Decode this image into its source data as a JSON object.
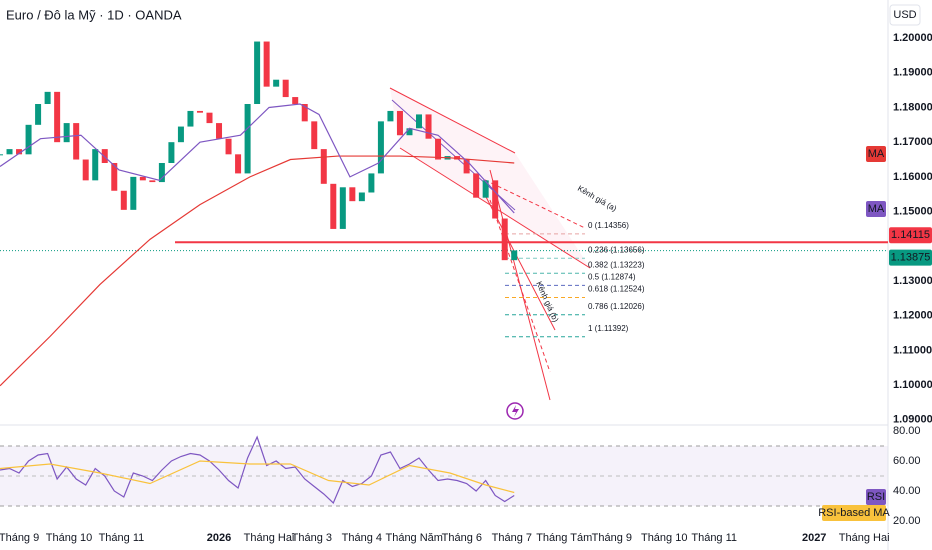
{
  "header": {
    "title": "Euro / Đô la Mỹ · 1D · OANDA",
    "currency": "USD"
  },
  "chart_data": [
    {
      "type": "candlestick",
      "up_color": "#089981",
      "down_color": "#f23645",
      "x": [
        -8,
        -4,
        0,
        4,
        8,
        12,
        16,
        20,
        24,
        28,
        32,
        36,
        40,
        44,
        48,
        52,
        56,
        60,
        64,
        68,
        72,
        76,
        80,
        84,
        88,
        92,
        96,
        100,
        104,
        108,
        112,
        116,
        120,
        124,
        128,
        132,
        136,
        140,
        144,
        148,
        152,
        156,
        160,
        164,
        168,
        172,
        176,
        180,
        184,
        188,
        192,
        196,
        200,
        204,
        208
      ],
      "close": [
        1.1665,
        1.168,
        1.1665,
        1.175,
        1.181,
        1.1845,
        1.17,
        1.1755,
        1.165,
        1.159,
        1.168,
        1.164,
        1.156,
        1.1505,
        1.16,
        1.159,
        1.1585,
        1.164,
        1.17,
        1.1745,
        1.179,
        1.1785,
        1.1755,
        1.171,
        1.1665,
        1.161,
        1.181,
        1.199,
        1.186,
        1.188,
        1.183,
        1.181,
        1.176,
        1.168,
        1.158,
        1.145,
        1.157,
        1.153,
        1.1555,
        1.161,
        1.176,
        1.179,
        1.172,
        1.174,
        1.178,
        1.171,
        1.165,
        1.166,
        1.165,
        1.161,
        1.154,
        1.159,
        1.148,
        1.136,
        1.1388
      ],
      "series": [
        {
          "name": "MA",
          "color": "#e53935",
          "x": [
            -8,
            13,
            34,
            55,
            76,
            97,
            114,
            134,
            160,
            181,
            208
          ],
          "values": [
            1.0998,
            1.114,
            1.129,
            1.142,
            1.152,
            1.16,
            1.165,
            1.166,
            1.166,
            1.1655,
            1.164
          ]
        },
        {
          "name": "MA",
          "color": "#7e57c2",
          "x": [
            -8,
            9,
            26,
            42,
            59,
            76,
            93,
            105,
            118,
            126,
            139,
            151,
            164,
            176,
            189,
            208
          ],
          "values": [
            1.163,
            1.171,
            1.172,
            1.162,
            1.159,
            1.17,
            1.172,
            1.18,
            1.181,
            1.178,
            1.16,
            1.164,
            1.174,
            1.172,
            1.164,
            1.1496
          ]
        }
      ],
      "hlines": [
        {
          "value": 1.14115,
          "label": "1.14115",
          "color": "#f23645"
        },
        {
          "value": 1.13875,
          "label": "1.13875",
          "color": "#089981"
        }
      ],
      "fib": [
        {
          "value": 1.14356,
          "label": "0 (1.14356)",
          "color": "#e6a3a3"
        },
        {
          "value": 1.13656,
          "label": "0.236 (1.13656)",
          "color": "#80cbc4"
        },
        {
          "value": 1.13223,
          "label": "0.382 (1.13223)",
          "color": "#4db6ac"
        },
        {
          "value": 1.12874,
          "label": "0.5 (1.12874)",
          "color": "#5c6bc0"
        },
        {
          "value": 1.12524,
          "label": "0.618 (1.12524)",
          "color": "#f9a825"
        },
        {
          "value": 1.12026,
          "label": "0.786 (1.12026)",
          "color": "#26a69a"
        },
        {
          "value": 1.11392,
          "label": "1 (1.11392)",
          "color": "#26a69a"
        }
      ],
      "annotations": [
        "Kênh giá (a)",
        "Kênh giá (b)"
      ],
      "xlim": [
        -8,
        365
      ],
      "xticks": [
        {
          "value": 0,
          "label": "Tháng 9"
        },
        {
          "value": 21,
          "label": "Tháng 10"
        },
        {
          "value": 43,
          "label": "Tháng 11"
        },
        {
          "value": 84,
          "label": "2026"
        },
        {
          "value": 105,
          "label": "Tháng Hai"
        },
        {
          "value": 123,
          "label": "Tháng 3"
        },
        {
          "value": 144,
          "label": "Tháng 4"
        },
        {
          "value": 166,
          "label": "Tháng Năm"
        },
        {
          "value": 186,
          "label": "Tháng 6"
        },
        {
          "value": 207,
          "label": "Tháng 7"
        },
        {
          "value": 229,
          "label": "Tháng Tám"
        },
        {
          "value": 249,
          "label": "Tháng 9"
        },
        {
          "value": 271,
          "label": "Tháng 10"
        },
        {
          "value": 292,
          "label": "Tháng 11"
        },
        {
          "value": 334,
          "label": "2027"
        },
        {
          "value": 355,
          "label": "Tháng Hai"
        }
      ],
      "ylim": [
        1.0885,
        1.21097
      ],
      "yticks": [
        {
          "value": 1.2,
          "label": "1.20000"
        },
        {
          "value": 1.19,
          "label": "1.19000"
        },
        {
          "value": 1.18,
          "label": "1.18000"
        },
        {
          "value": 1.17,
          "label": "1.17000"
        },
        {
          "value": 1.16,
          "label": "1.16000"
        },
        {
          "value": 1.15,
          "label": "1.15000"
        },
        {
          "value": 1.13,
          "label": "1.13000"
        },
        {
          "value": 1.12,
          "label": "1.12000"
        },
        {
          "value": 1.11,
          "label": "1.11000"
        },
        {
          "value": 1.1,
          "label": "1.10000"
        },
        {
          "value": 1.09,
          "label": "1.09000"
        }
      ]
    },
    {
      "type": "line",
      "series": [
        {
          "name": "RSI",
          "color": "#7e57c2",
          "x": [
            -8,
            -4,
            0,
            4,
            8,
            12,
            16,
            20,
            24,
            28,
            32,
            36,
            40,
            44,
            48,
            52,
            56,
            60,
            64,
            68,
            72,
            76,
            80,
            84,
            88,
            92,
            96,
            100,
            104,
            108,
            112,
            116,
            120,
            124,
            128,
            132,
            136,
            140,
            144,
            148,
            152,
            156,
            160,
            164,
            168,
            172,
            176,
            180,
            184,
            188,
            192,
            196,
            200,
            204,
            208
          ],
          "values": [
            54,
            55,
            52,
            60,
            64,
            65,
            48,
            56,
            48,
            44,
            55,
            50,
            40,
            36,
            52,
            50,
            47,
            54,
            60,
            63,
            65,
            64,
            60,
            54,
            47,
            42,
            62,
            76,
            57,
            60,
            55,
            56,
            48,
            43,
            38,
            32,
            47,
            43,
            45,
            50,
            64,
            66,
            55,
            58,
            62,
            54,
            47,
            48,
            47,
            45,
            40,
            47,
            37,
            33,
            37
          ]
        },
        {
          "name": "RSI-based MA",
          "color": "#f9c23c",
          "x": [
            -8,
            13,
            34,
            55,
            76,
            97,
            114,
            130,
            147,
            164,
            181,
            196,
            208
          ],
          "values": [
            55,
            58,
            52,
            45,
            60,
            58,
            58,
            47,
            44,
            57,
            52,
            44,
            39
          ]
        }
      ],
      "ylim": [
        7.33,
        84
      ],
      "yticks": [
        {
          "value": 80,
          "label": "80.00"
        },
        {
          "value": 60,
          "label": "60.00"
        },
        {
          "value": 40,
          "label": "40.00"
        },
        {
          "value": 20,
          "label": "20.00"
        }
      ]
    }
  ]
}
